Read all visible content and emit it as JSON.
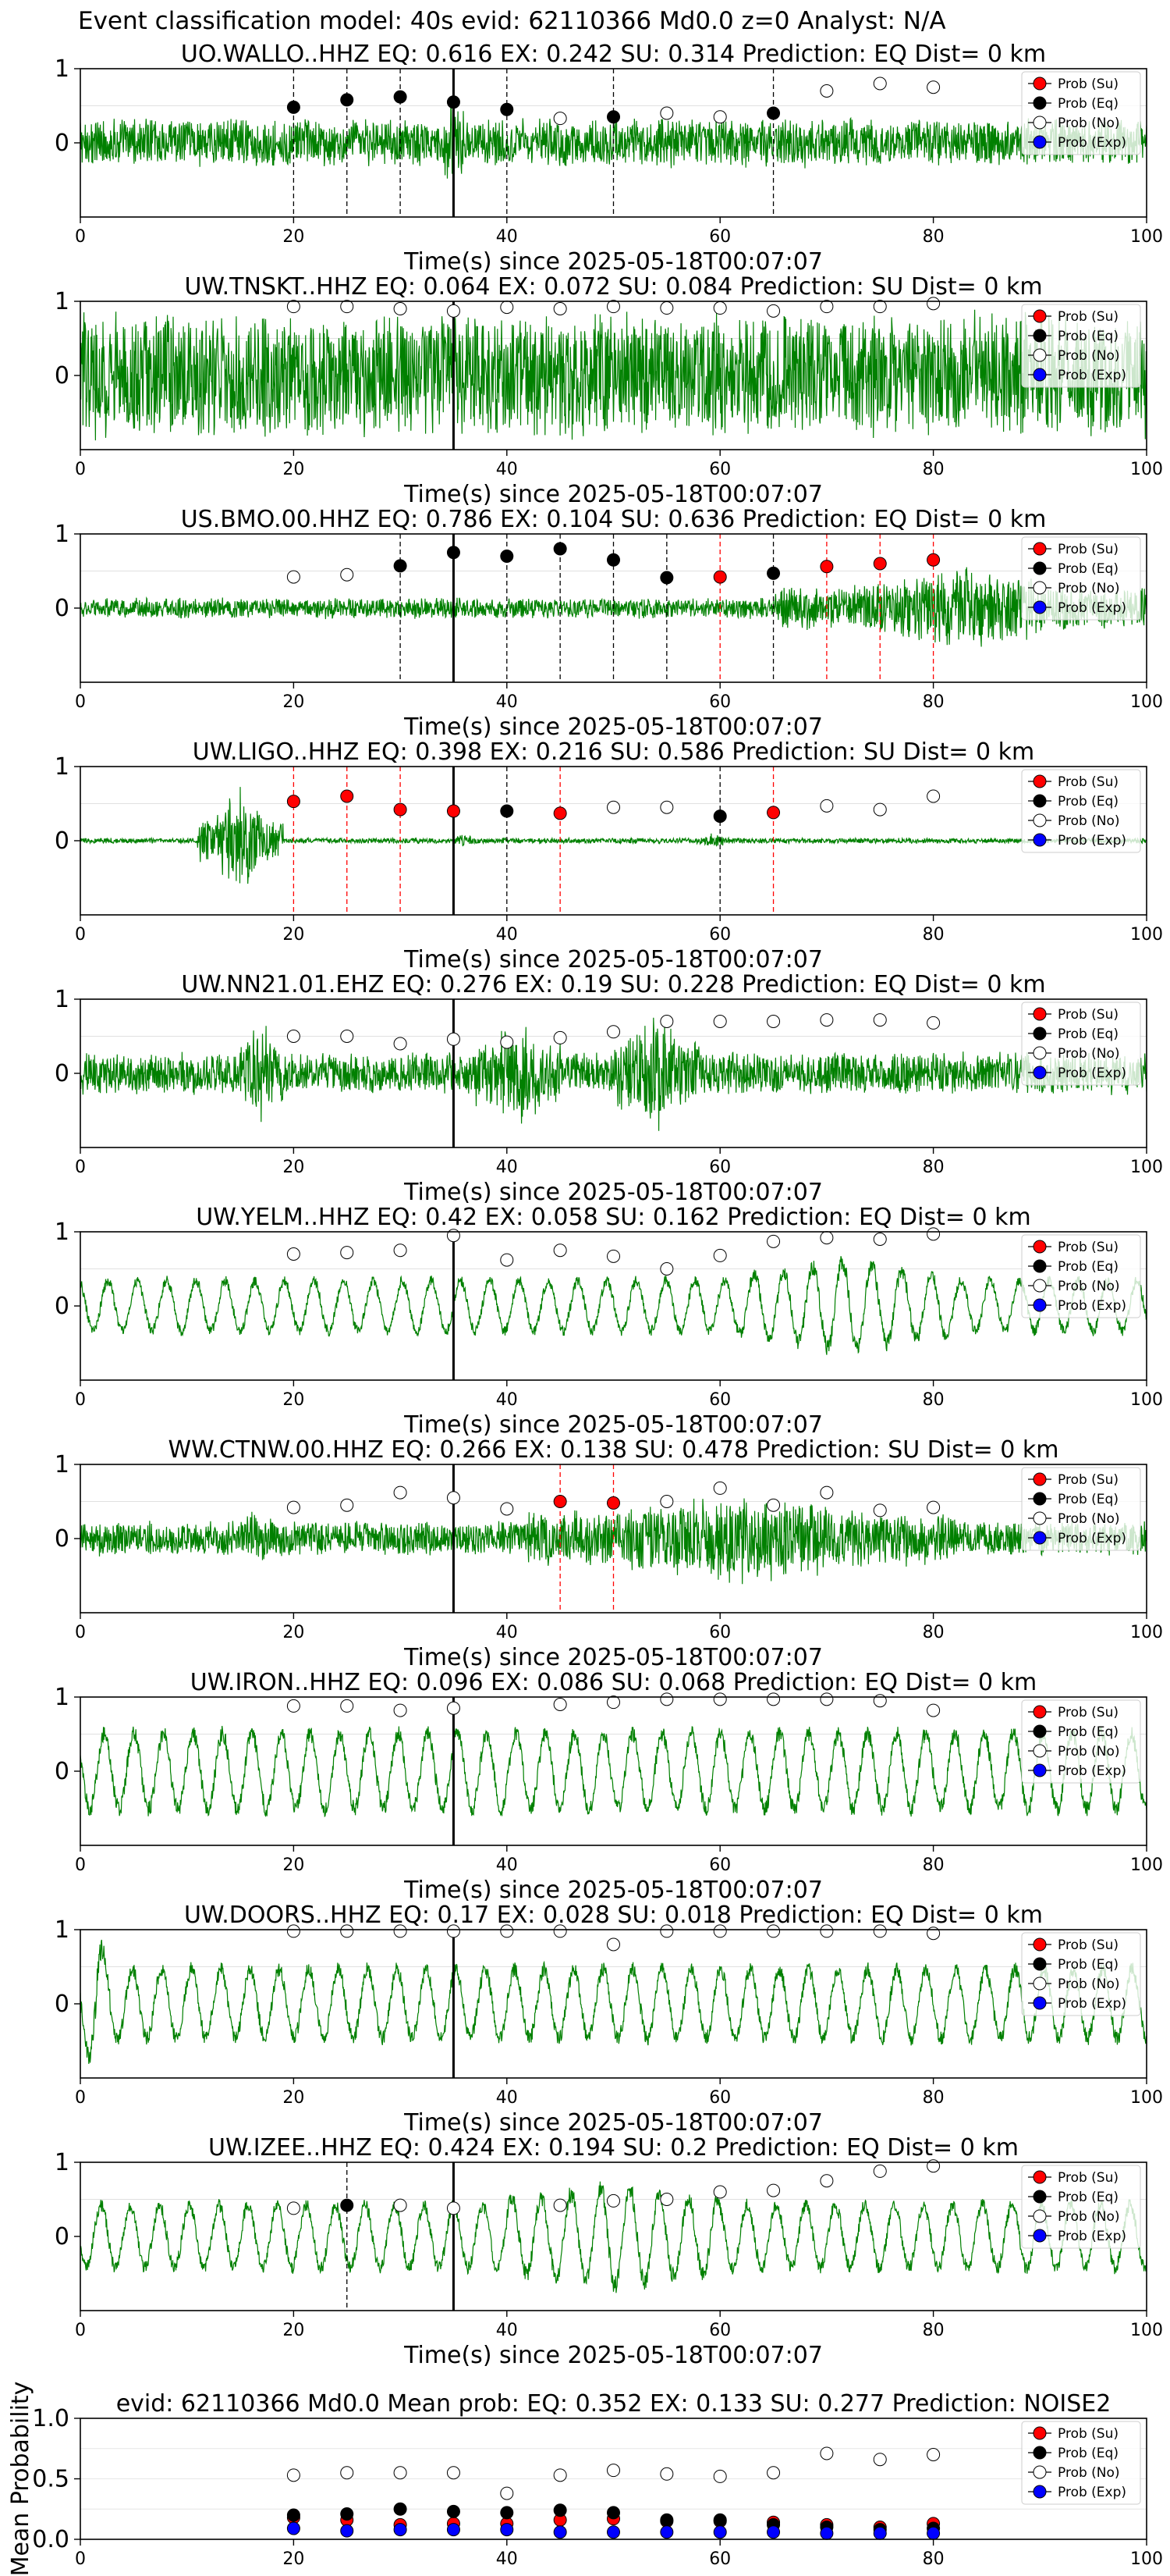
{
  "header": {
    "title": "Event classification model: 40s evid: 62110366 Md0.0 z=0 Analyst: N/A"
  },
  "legend_entries": [
    "Prob (Su)",
    "Prob (Eq)",
    "Prob (No)",
    "Prob (Exp)"
  ],
  "colors": {
    "waveform": "#008000",
    "su": "#ff0000",
    "eq": "#000000",
    "no": "#ffffff",
    "exp": "#0000ff",
    "su_line": "#ff0000",
    "eq_line": "#000000",
    "p_pick": "#000000"
  },
  "chart_data": [
    {
      "type": "line",
      "title": "UO.WALLO..HHZ   EQ: 0.616  EX: 0.242  SU: 0.314   Prediction: EQ    Dist= 0 km",
      "xlabel": "Time(s) since 2025-05-18T00:07:07",
      "xlim": [
        0,
        100
      ],
      "ylim": [
        -1,
        1
      ],
      "xticks": [
        "0",
        "20",
        "40",
        "60",
        "80",
        "100"
      ],
      "yticks": [
        "0",
        "1"
      ],
      "p_pick": 35,
      "amplitude": 0.35,
      "waveform_style": "noisy",
      "bursts": [
        [
          34,
          36,
          2.2
        ]
      ],
      "markers": [
        {
          "x": 20,
          "y": 0.48,
          "class": "eq"
        },
        {
          "x": 25,
          "y": 0.58,
          "class": "eq"
        },
        {
          "x": 30,
          "y": 0.62,
          "class": "eq"
        },
        {
          "x": 35,
          "y": 0.55,
          "class": "eq"
        },
        {
          "x": 40,
          "y": 0.45,
          "class": "eq"
        },
        {
          "x": 45,
          "y": 0.33,
          "class": "no"
        },
        {
          "x": 50,
          "y": 0.35,
          "class": "eq"
        },
        {
          "x": 55,
          "y": 0.4,
          "class": "no"
        },
        {
          "x": 60,
          "y": 0.35,
          "class": "no"
        },
        {
          "x": 65,
          "y": 0.4,
          "class": "eq"
        },
        {
          "x": 70,
          "y": 0.7,
          "class": "no"
        },
        {
          "x": 75,
          "y": 0.8,
          "class": "no"
        },
        {
          "x": 80,
          "y": 0.75,
          "class": "no"
        }
      ]
    },
    {
      "type": "line",
      "title": "UW.TNSKT..HHZ   EQ: 0.064  EX: 0.072  SU: 0.084   Prediction: SU    Dist= 0 km",
      "xlabel": "Time(s) since 2025-05-18T00:07:07",
      "xlim": [
        0,
        100
      ],
      "ylim": [
        -1,
        1
      ],
      "xticks": [
        "0",
        "20",
        "40",
        "60",
        "80",
        "100"
      ],
      "yticks": [
        "0",
        "1"
      ],
      "p_pick": 35,
      "amplitude": 0.9,
      "waveform_style": "noisy",
      "bursts": [],
      "markers": [
        {
          "x": 20,
          "y": 0.93,
          "class": "no"
        },
        {
          "x": 25,
          "y": 0.93,
          "class": "no"
        },
        {
          "x": 30,
          "y": 0.9,
          "class": "no"
        },
        {
          "x": 35,
          "y": 0.87,
          "class": "no"
        },
        {
          "x": 40,
          "y": 0.92,
          "class": "no"
        },
        {
          "x": 45,
          "y": 0.9,
          "class": "no"
        },
        {
          "x": 50,
          "y": 0.93,
          "class": "no"
        },
        {
          "x": 55,
          "y": 0.91,
          "class": "no"
        },
        {
          "x": 60,
          "y": 0.91,
          "class": "no"
        },
        {
          "x": 65,
          "y": 0.87,
          "class": "no"
        },
        {
          "x": 70,
          "y": 0.93,
          "class": "no"
        },
        {
          "x": 75,
          "y": 0.93,
          "class": "no"
        },
        {
          "x": 80,
          "y": 0.97,
          "class": "no"
        }
      ]
    },
    {
      "type": "line",
      "title": "US.BMO.00.HHZ   EQ: 0.786  EX: 0.104  SU: 0.636   Prediction: EQ    Dist= 0 km",
      "xlabel": "Time(s) since 2025-05-18T00:07:07",
      "xlim": [
        0,
        100
      ],
      "ylim": [
        -1,
        1
      ],
      "xticks": [
        "0",
        "20",
        "40",
        "60",
        "80",
        "100"
      ],
      "yticks": [
        "0",
        "1"
      ],
      "p_pick": 35,
      "amplitude": 0.15,
      "waveform_style": "noisy",
      "bursts": [
        [
          65,
          100,
          4.0
        ]
      ],
      "markers": [
        {
          "x": 20,
          "y": 0.42,
          "class": "no"
        },
        {
          "x": 25,
          "y": 0.45,
          "class": "no"
        },
        {
          "x": 30,
          "y": 0.57,
          "class": "eq"
        },
        {
          "x": 35,
          "y": 0.75,
          "class": "eq"
        },
        {
          "x": 40,
          "y": 0.7,
          "class": "eq"
        },
        {
          "x": 45,
          "y": 0.8,
          "class": "eq"
        },
        {
          "x": 50,
          "y": 0.65,
          "class": "eq"
        },
        {
          "x": 55,
          "y": 0.41,
          "class": "eq"
        },
        {
          "x": 60,
          "y": 0.42,
          "class": "su"
        },
        {
          "x": 65,
          "y": 0.47,
          "class": "eq"
        },
        {
          "x": 70,
          "y": 0.56,
          "class": "su"
        },
        {
          "x": 75,
          "y": 0.6,
          "class": "su"
        },
        {
          "x": 80,
          "y": 0.65,
          "class": "su"
        }
      ]
    },
    {
      "type": "line",
      "title": "UW.LIGO..HHZ   EQ: 0.398  EX: 0.216  SU: 0.586   Prediction: SU    Dist= 0 km",
      "xlabel": "Time(s) since 2025-05-18T00:07:07",
      "xlim": [
        0,
        100
      ],
      "ylim": [
        -1,
        1
      ],
      "xticks": [
        "0",
        "20",
        "40",
        "60",
        "80",
        "100"
      ],
      "yticks": [
        "0",
        "1"
      ],
      "p_pick": 35,
      "amplitude": 0.04,
      "waveform_style": "noisy",
      "bursts": [
        [
          11,
          19,
          20.0
        ],
        [
          35,
          37,
          3.0
        ],
        [
          58,
          61,
          3.0
        ]
      ],
      "markers": [
        {
          "x": 20,
          "y": 0.53,
          "class": "su"
        },
        {
          "x": 25,
          "y": 0.6,
          "class": "su"
        },
        {
          "x": 30,
          "y": 0.42,
          "class": "su"
        },
        {
          "x": 35,
          "y": 0.4,
          "class": "su"
        },
        {
          "x": 40,
          "y": 0.4,
          "class": "eq"
        },
        {
          "x": 45,
          "y": 0.37,
          "class": "su"
        },
        {
          "x": 50,
          "y": 0.45,
          "class": "no"
        },
        {
          "x": 55,
          "y": 0.45,
          "class": "no"
        },
        {
          "x": 60,
          "y": 0.33,
          "class": "eq"
        },
        {
          "x": 65,
          "y": 0.38,
          "class": "su"
        },
        {
          "x": 70,
          "y": 0.47,
          "class": "no"
        },
        {
          "x": 75,
          "y": 0.42,
          "class": "no"
        },
        {
          "x": 80,
          "y": 0.6,
          "class": "no"
        }
      ]
    },
    {
      "type": "line",
      "title": "UW.NN21.01.EHZ   EQ: 0.276  EX: 0.19  SU: 0.228   Prediction: EQ    Dist= 0 km",
      "xlabel": "Time(s) since 2025-05-18T00:07:07",
      "xlim": [
        0,
        100
      ],
      "ylim": [
        -1,
        1
      ],
      "xticks": [
        "0",
        "20",
        "40",
        "60",
        "80",
        "100"
      ],
      "yticks": [
        "0",
        "1"
      ],
      "p_pick": 35,
      "amplitude": 0.3,
      "waveform_style": "noisy",
      "bursts": [
        [
          15,
          19,
          2.8
        ],
        [
          37,
          45,
          2.6
        ],
        [
          50,
          58,
          3.0
        ]
      ],
      "markers": [
        {
          "x": 20,
          "y": 0.5,
          "class": "no"
        },
        {
          "x": 25,
          "y": 0.5,
          "class": "no"
        },
        {
          "x": 30,
          "y": 0.4,
          "class": "no"
        },
        {
          "x": 35,
          "y": 0.46,
          "class": "no"
        },
        {
          "x": 40,
          "y": 0.42,
          "class": "no"
        },
        {
          "x": 45,
          "y": 0.48,
          "class": "no"
        },
        {
          "x": 50,
          "y": 0.56,
          "class": "no"
        },
        {
          "x": 55,
          "y": 0.7,
          "class": "no"
        },
        {
          "x": 60,
          "y": 0.7,
          "class": "no"
        },
        {
          "x": 65,
          "y": 0.7,
          "class": "no"
        },
        {
          "x": 70,
          "y": 0.72,
          "class": "no"
        },
        {
          "x": 75,
          "y": 0.72,
          "class": "no"
        },
        {
          "x": 80,
          "y": 0.68,
          "class": "no"
        }
      ]
    },
    {
      "type": "line",
      "title": "UW.YELM..HHZ   EQ: 0.42  EX: 0.058  SU: 0.162   Prediction: EQ    Dist= 0 km",
      "xlabel": "Time(s) since 2025-05-18T00:07:07",
      "xlim": [
        0,
        100
      ],
      "ylim": [
        -1,
        1
      ],
      "xticks": [
        "0",
        "20",
        "40",
        "60",
        "80",
        "100"
      ],
      "yticks": [
        "0",
        "1"
      ],
      "p_pick": 35,
      "amplitude": 0.4,
      "waveform_style": "wavy",
      "bursts": [
        [
          62,
          82,
          1.8
        ]
      ],
      "markers": [
        {
          "x": 20,
          "y": 0.7,
          "class": "no"
        },
        {
          "x": 25,
          "y": 0.72,
          "class": "no"
        },
        {
          "x": 30,
          "y": 0.75,
          "class": "no"
        },
        {
          "x": 35,
          "y": 0.95,
          "class": "no"
        },
        {
          "x": 40,
          "y": 0.62,
          "class": "no"
        },
        {
          "x": 45,
          "y": 0.75,
          "class": "no"
        },
        {
          "x": 50,
          "y": 0.67,
          "class": "no"
        },
        {
          "x": 55,
          "y": 0.5,
          "class": "no"
        },
        {
          "x": 60,
          "y": 0.68,
          "class": "no"
        },
        {
          "x": 65,
          "y": 0.87,
          "class": "no"
        },
        {
          "x": 70,
          "y": 0.92,
          "class": "no"
        },
        {
          "x": 75,
          "y": 0.9,
          "class": "no"
        },
        {
          "x": 80,
          "y": 0.97,
          "class": "no"
        }
      ]
    },
    {
      "type": "line",
      "title": "WW.CTNW.00.HHZ   EQ: 0.266  EX: 0.138  SU: 0.478   Prediction: SU    Dist= 0 km",
      "xlabel": "Time(s) since 2025-05-18T00:07:07",
      "xlim": [
        0,
        100
      ],
      "ylim": [
        -1,
        1
      ],
      "xticks": [
        "0",
        "20",
        "40",
        "60",
        "80",
        "100"
      ],
      "yticks": [
        "0",
        "1"
      ],
      "p_pick": 35,
      "amplitude": 0.25,
      "waveform_style": "noisy",
      "bursts": [
        [
          15,
          18,
          2.0
        ],
        [
          42,
          82,
          2.6
        ]
      ],
      "markers": [
        {
          "x": 20,
          "y": 0.42,
          "class": "no"
        },
        {
          "x": 25,
          "y": 0.45,
          "class": "no"
        },
        {
          "x": 30,
          "y": 0.62,
          "class": "no"
        },
        {
          "x": 35,
          "y": 0.55,
          "class": "no"
        },
        {
          "x": 40,
          "y": 0.4,
          "class": "no"
        },
        {
          "x": 45,
          "y": 0.5,
          "class": "su"
        },
        {
          "x": 50,
          "y": 0.48,
          "class": "su"
        },
        {
          "x": 55,
          "y": 0.5,
          "class": "no"
        },
        {
          "x": 60,
          "y": 0.68,
          "class": "no"
        },
        {
          "x": 65,
          "y": 0.45,
          "class": "no"
        },
        {
          "x": 70,
          "y": 0.62,
          "class": "no"
        },
        {
          "x": 75,
          "y": 0.38,
          "class": "no"
        },
        {
          "x": 80,
          "y": 0.42,
          "class": "no"
        }
      ]
    },
    {
      "type": "line",
      "title": "UW.IRON..HHZ   EQ: 0.096  EX: 0.086  SU: 0.068   Prediction: EQ    Dist= 0 km",
      "xlabel": "Time(s) since 2025-05-18T00:07:07",
      "xlim": [
        0,
        100
      ],
      "ylim": [
        -1,
        1
      ],
      "xticks": [
        "0",
        "20",
        "40",
        "60",
        "80",
        "100"
      ],
      "yticks": [
        "0",
        "1"
      ],
      "p_pick": 35,
      "amplitude": 0.6,
      "waveform_style": "wavy",
      "bursts": [],
      "markers": [
        {
          "x": 20,
          "y": 0.88,
          "class": "no"
        },
        {
          "x": 25,
          "y": 0.88,
          "class": "no"
        },
        {
          "x": 30,
          "y": 0.82,
          "class": "no"
        },
        {
          "x": 35,
          "y": 0.85,
          "class": "no"
        },
        {
          "x": 45,
          "y": 0.9,
          "class": "no"
        },
        {
          "x": 50,
          "y": 0.93,
          "class": "no"
        },
        {
          "x": 55,
          "y": 0.97,
          "class": "no"
        },
        {
          "x": 60,
          "y": 0.97,
          "class": "no"
        },
        {
          "x": 65,
          "y": 0.97,
          "class": "no"
        },
        {
          "x": 70,
          "y": 0.97,
          "class": "no"
        },
        {
          "x": 75,
          "y": 0.95,
          "class": "no"
        },
        {
          "x": 80,
          "y": 0.82,
          "class": "no"
        }
      ]
    },
    {
      "type": "line",
      "title": "UW.DOORS..HHZ   EQ: 0.17  EX: 0.028  SU: 0.018   Prediction: EQ    Dist= 0 km",
      "xlabel": "Time(s) since 2025-05-18T00:07:07",
      "xlim": [
        0,
        100
      ],
      "ylim": [
        -1,
        1
      ],
      "xticks": [
        "0",
        "20",
        "40",
        "60",
        "80",
        "100"
      ],
      "yticks": [
        "0",
        "1"
      ],
      "p_pick": 35,
      "amplitude": 0.55,
      "waveform_style": "wavy",
      "bursts": [
        [
          0,
          3,
          2.0
        ]
      ],
      "markers": [
        {
          "x": 20,
          "y": 0.98,
          "class": "no"
        },
        {
          "x": 25,
          "y": 0.98,
          "class": "no"
        },
        {
          "x": 30,
          "y": 0.98,
          "class": "no"
        },
        {
          "x": 35,
          "y": 0.98,
          "class": "no"
        },
        {
          "x": 40,
          "y": 0.98,
          "class": "no"
        },
        {
          "x": 45,
          "y": 0.98,
          "class": "no"
        },
        {
          "x": 50,
          "y": 0.8,
          "class": "no"
        },
        {
          "x": 55,
          "y": 0.98,
          "class": "no"
        },
        {
          "x": 60,
          "y": 0.98,
          "class": "no"
        },
        {
          "x": 65,
          "y": 0.98,
          "class": "no"
        },
        {
          "x": 70,
          "y": 0.98,
          "class": "no"
        },
        {
          "x": 75,
          "y": 0.98,
          "class": "no"
        },
        {
          "x": 80,
          "y": 0.95,
          "class": "no"
        }
      ]
    },
    {
      "type": "line",
      "title": "UW.IZEE..HHZ   EQ: 0.424  EX: 0.194  SU: 0.2   Prediction: EQ    Dist= 0 km",
      "xlabel": "Time(s) since 2025-05-18T00:07:07",
      "xlim": [
        0,
        100
      ],
      "ylim": [
        -1,
        1
      ],
      "xticks": [
        "0",
        "20",
        "40",
        "60",
        "80",
        "100"
      ],
      "yticks": [
        "0",
        "1"
      ],
      "p_pick": 35,
      "amplitude": 0.5,
      "waveform_style": "wavy",
      "bursts": [
        [
          40,
          60,
          1.6
        ]
      ],
      "markers": [
        {
          "x": 20,
          "y": 0.38,
          "class": "no"
        },
        {
          "x": 25,
          "y": 0.42,
          "class": "eq"
        },
        {
          "x": 30,
          "y": 0.42,
          "class": "no"
        },
        {
          "x": 35,
          "y": 0.38,
          "class": "no"
        },
        {
          "x": 45,
          "y": 0.42,
          "class": "no"
        },
        {
          "x": 50,
          "y": 0.48,
          "class": "no"
        },
        {
          "x": 55,
          "y": 0.5,
          "class": "no"
        },
        {
          "x": 60,
          "y": 0.6,
          "class": "no"
        },
        {
          "x": 65,
          "y": 0.62,
          "class": "no"
        },
        {
          "x": 70,
          "y": 0.75,
          "class": "no"
        },
        {
          "x": 75,
          "y": 0.88,
          "class": "no"
        },
        {
          "x": 80,
          "y": 0.95,
          "class": "no"
        }
      ]
    },
    {
      "type": "scatter",
      "title": "evid: 62110366  Md0.0   Mean prob:   EQ: 0.352  EX: 0.133  SU: 0.277   Prediction: NOISE2",
      "ylabel": "Mean Probability",
      "xlim": [
        0,
        100
      ],
      "ylim": [
        0,
        1
      ],
      "xticks": [
        "0",
        "20",
        "40",
        "60",
        "80",
        "100"
      ],
      "yticks": [
        "0.0",
        "0.5",
        "1.0"
      ],
      "x": [
        20,
        25,
        30,
        35,
        40,
        45,
        50,
        55,
        60,
        65,
        70,
        75,
        80
      ],
      "series": [
        {
          "name": "Prob (Su)",
          "class": "su",
          "values": [
            0.18,
            0.16,
            0.12,
            0.13,
            0.13,
            0.16,
            0.17,
            0.15,
            0.15,
            0.14,
            0.12,
            0.1,
            0.13
          ]
        },
        {
          "name": "Prob (Eq)",
          "class": "eq",
          "values": [
            0.2,
            0.21,
            0.25,
            0.23,
            0.22,
            0.24,
            0.22,
            0.16,
            0.16,
            0.12,
            0.1,
            0.08,
            0.09
          ]
        },
        {
          "name": "Prob (No)",
          "class": "no",
          "values": [
            0.53,
            0.55,
            0.55,
            0.55,
            0.38,
            0.53,
            0.57,
            0.54,
            0.52,
            0.55,
            0.71,
            0.66,
            0.7
          ]
        },
        {
          "name": "Prob (Exp)",
          "class": "exp",
          "values": [
            0.09,
            0.07,
            0.08,
            0.08,
            0.08,
            0.06,
            0.06,
            0.06,
            0.06,
            0.06,
            0.05,
            0.05,
            0.05
          ]
        }
      ]
    }
  ]
}
